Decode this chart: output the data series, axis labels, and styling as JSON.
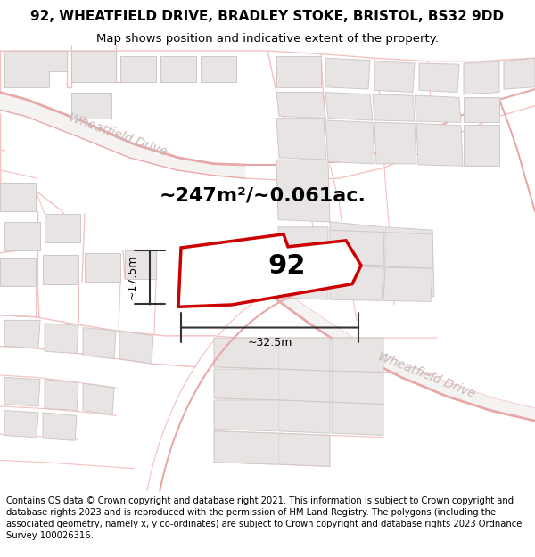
{
  "title": "92, WHEATFIELD DRIVE, BRADLEY STOKE, BRISTOL, BS32 9DD",
  "subtitle": "Map shows position and indicative extent of the property.",
  "footer": "Contains OS data © Crown copyright and database right 2021. This information is subject to Crown copyright and database rights 2023 and is reproduced with the permission of HM Land Registry. The polygons (including the associated geometry, namely x, y co-ordinates) are subject to Crown copyright and database rights 2023 Ordnance Survey 100026316.",
  "area_text": "~247m²/~0.061ac.",
  "label_92": "92",
  "dim_v": "~17.5m",
  "dim_h": "~32.5m",
  "plot_fill": "#ffffff",
  "plot_edge": "#cc0000",
  "road_color": "#f5c0c0",
  "road_color2": "#e8a8a8",
  "building_fill": "#e8e4e4",
  "building_edge": "#d0c8c8",
  "street_label_color": "#c8b8b8",
  "street_label": "Wheatfield Drive",
  "map_bg": "#f8f6f6",
  "title_fontsize": 11,
  "subtitle_fontsize": 9.5,
  "footer_fontsize": 7.2,
  "area_fontsize": 16,
  "dim_fontsize": 9,
  "label_fontsize": 22
}
